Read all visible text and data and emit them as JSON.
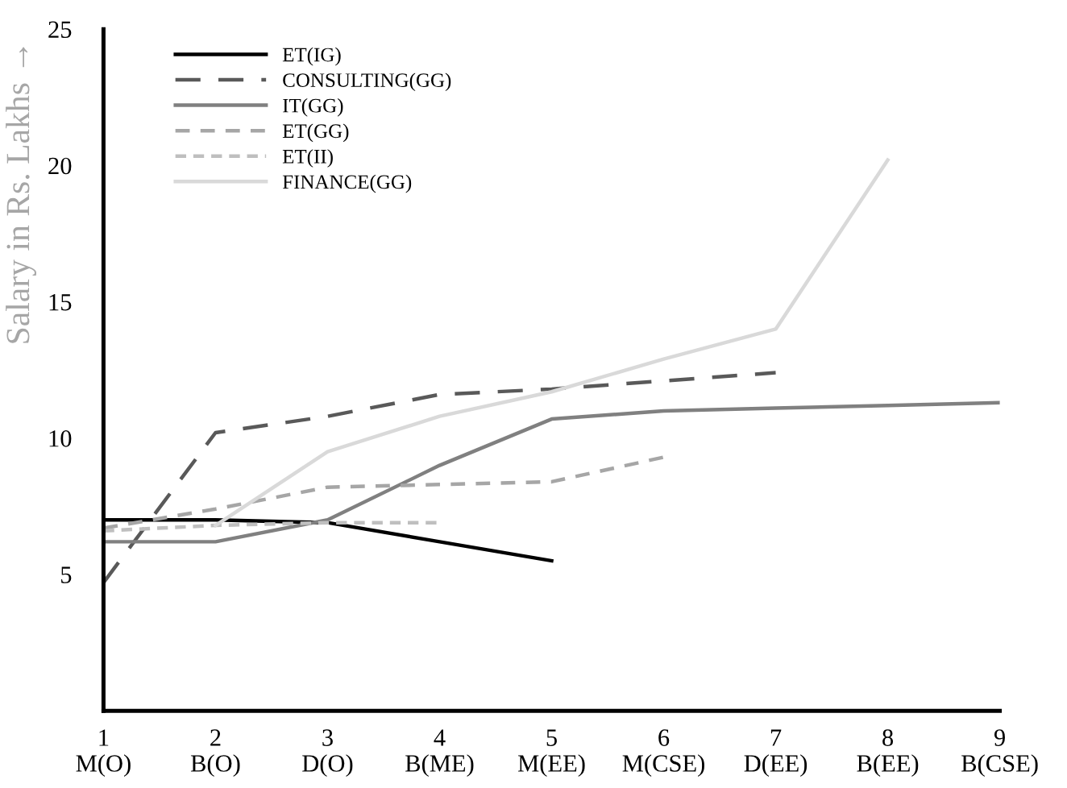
{
  "chart_data": {
    "type": "line",
    "ylabel": "Salary in Rs. Lakhs →",
    "x": [
      1,
      2,
      3,
      4,
      5,
      6,
      7,
      8,
      9
    ],
    "xlim": [
      1,
      9
    ],
    "xticks": [
      {
        "value": 1,
        "label": "1\nM(O)"
      },
      {
        "value": 2,
        "label": "2\nB(O)"
      },
      {
        "value": 3,
        "label": "3\nD(O)"
      },
      {
        "value": 4,
        "label": "4\nB(ME)"
      },
      {
        "value": 5,
        "label": "5\nM(EE)"
      },
      {
        "value": 6,
        "label": "6\nM(CSE)"
      },
      {
        "value": 7,
        "label": "7\nD(EE)"
      },
      {
        "value": 8,
        "label": "8\nB(EE)"
      },
      {
        "value": 9,
        "label": "9\nB(CSE)"
      }
    ],
    "ylim": [
      0,
      25
    ],
    "yticks": [
      5,
      10,
      15,
      20,
      25
    ],
    "grid": false,
    "legend": "top left",
    "marker": "none",
    "series": [
      {
        "name": "ET(IG)",
        "color": "#000000",
        "line_style": "solid",
        "values": [
          7.0,
          7.0,
          6.9,
          6.2,
          5.5,
          null,
          null,
          null,
          null
        ]
      },
      {
        "name": "CONSULTING(GG)",
        "color": "#595959",
        "line_style": "dashed",
        "values": [
          4.7,
          10.2,
          10.8,
          11.6,
          11.8,
          12.1,
          12.4,
          null,
          null
        ]
      },
      {
        "name": "IT(GG)",
        "color": "#808080",
        "line_style": "solid",
        "values": [
          6.2,
          6.2,
          7.0,
          9.0,
          10.7,
          11.0,
          11.1,
          11.2,
          11.3
        ]
      },
      {
        "name": "ET(GG)",
        "color": "#a6a6a6",
        "line_style": "dashed",
        "values": [
          6.7,
          7.4,
          8.2,
          8.3,
          8.4,
          9.3,
          null,
          null,
          null
        ]
      },
      {
        "name": "ET(II)",
        "color": "#bfbfbf",
        "line_style": "dotted",
        "values": [
          6.6,
          6.8,
          6.9,
          6.9,
          null,
          null,
          null,
          null,
          null
        ]
      },
      {
        "name": "FINANCE(GG)",
        "color": "#d9d9d9",
        "line_style": "solid",
        "values": [
          null,
          6.8,
          9.5,
          10.8,
          11.7,
          12.9,
          14.0,
          20.2,
          null
        ]
      }
    ]
  }
}
